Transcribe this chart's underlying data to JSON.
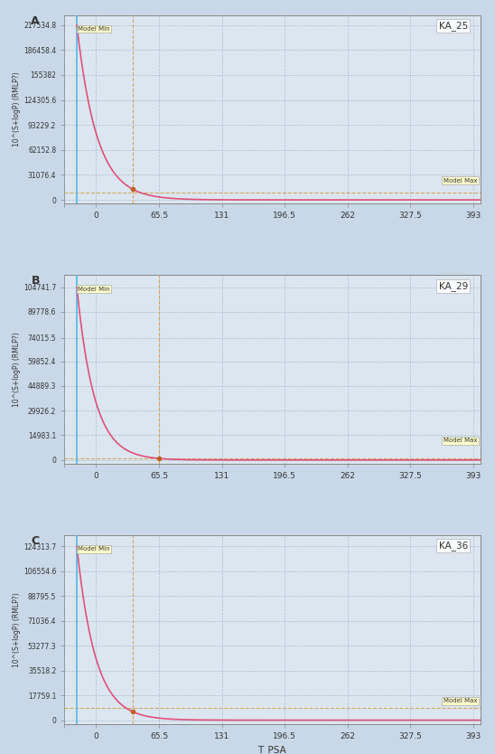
{
  "panels": [
    {
      "label": "A",
      "title": "KA_25",
      "yticks": [
        0,
        31076.4,
        62152.8,
        93229.2,
        124305.6,
        155382,
        186458.4,
        217534.8
      ],
      "ytick_labels": [
        "0",
        "31076.4",
        "62152.8",
        "93229.2",
        "124305.6",
        "155382",
        "186458.4",
        "217534.8"
      ],
      "ymax": 230000,
      "decay_rate": 0.048,
      "blue_line_x": -20,
      "orange_h_y": 9000,
      "orange_v_x": 38,
      "model_min_peak": 217534.8
    },
    {
      "label": "B",
      "title": "KA_29",
      "yticks": [
        0,
        14983.1,
        29926.2,
        44889.3,
        59852.4,
        74015.5,
        89778.6,
        104741.7
      ],
      "ytick_labels": [
        "0",
        "14983.1",
        "29926.2",
        "44889.3",
        "59852.4",
        "74015.5",
        "89778.6",
        "104741.7"
      ],
      "ymax": 112000,
      "decay_rate": 0.055,
      "blue_line_x": -20,
      "orange_h_y": 1200,
      "orange_v_x": 65.5,
      "model_min_peak": 104741.7
    },
    {
      "label": "C",
      "title": "KA_36",
      "yticks": [
        0,
        17759.1,
        35518.2,
        53277.3,
        71036.4,
        88795.5,
        106554.6,
        124313.7
      ],
      "ytick_labels": [
        "0",
        "17759.1",
        "35518.2",
        "53277.3",
        "71036.4",
        "88795.5",
        "106554.6",
        "124313.7"
      ],
      "ymax": 132000,
      "decay_rate": 0.052,
      "blue_line_x": -20,
      "orange_h_y": 9000,
      "orange_v_x": 38,
      "model_min_peak": 124313.7
    }
  ],
  "xticks": [
    -33,
    0,
    65.5,
    131,
    196.5,
    262,
    327.5,
    393
  ],
  "xtick_labels": [
    "",
    "0",
    "65.5",
    "131",
    "196.5",
    "262",
    "327.5",
    "393"
  ],
  "xlabel": "T_PSA",
  "ylabel": "10^(S+logP) (RMLP?)",
  "xmin": -33,
  "xmax": 400,
  "bg_color": "#dce6f0",
  "grid_color": "#a0b4c8",
  "curve_color": "#e0507a",
  "blue_line_color": "#5bbce4",
  "orange_line_color": "#d4a050",
  "fig_bg_color": "#c8d8e8"
}
